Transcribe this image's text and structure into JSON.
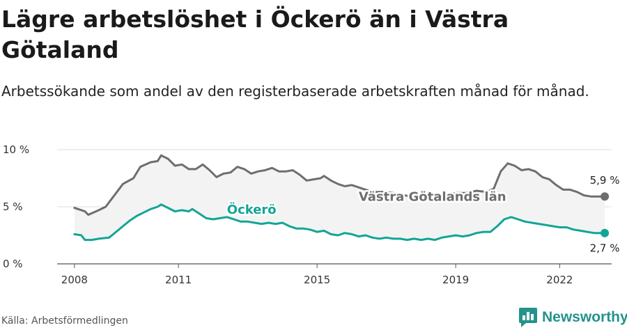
{
  "chart_data": {
    "type": "line",
    "title": "Lägre arbetslöshet i Öckerö än i Västra Götaland",
    "subtitle": "Arbetssökande som andel av den registerbaserade arbetskraften månad för månad.",
    "ylim": [
      0,
      10
    ],
    "y_ticks": [
      "0 %",
      "5 %",
      "10 %"
    ],
    "x_range": [
      2007.5,
      2023.5
    ],
    "x_ticks": [
      {
        "label": "2008",
        "value": 2008
      },
      {
        "label": "2011",
        "value": 2011
      },
      {
        "label": "2015",
        "value": 2015
      },
      {
        "label": "2019",
        "value": 2019
      },
      {
        "label": "2022",
        "value": 2022
      }
    ],
    "series": [
      {
        "name": "Västra Götalands län",
        "color": "#6e6e6e",
        "label": "Västra Götalands län",
        "end_label": "5,9 %",
        "points": [
          [
            2008.0,
            4.9
          ],
          [
            2008.3,
            4.6
          ],
          [
            2008.4,
            4.3
          ],
          [
            2008.7,
            4.7
          ],
          [
            2008.9,
            5.0
          ],
          [
            2009.2,
            6.2
          ],
          [
            2009.4,
            7.0
          ],
          [
            2009.7,
            7.5
          ],
          [
            2009.9,
            8.5
          ],
          [
            2010.2,
            8.9
          ],
          [
            2010.4,
            9.0
          ],
          [
            2010.5,
            9.5
          ],
          [
            2010.7,
            9.2
          ],
          [
            2010.9,
            8.6
          ],
          [
            2011.1,
            8.7
          ],
          [
            2011.3,
            8.3
          ],
          [
            2011.5,
            8.3
          ],
          [
            2011.7,
            8.7
          ],
          [
            2011.9,
            8.2
          ],
          [
            2012.1,
            7.6
          ],
          [
            2012.3,
            7.9
          ],
          [
            2012.5,
            8.0
          ],
          [
            2012.7,
            8.5
          ],
          [
            2012.9,
            8.3
          ],
          [
            2013.1,
            7.9
          ],
          [
            2013.3,
            8.1
          ],
          [
            2013.5,
            8.2
          ],
          [
            2013.7,
            8.4
          ],
          [
            2013.9,
            8.1
          ],
          [
            2014.1,
            8.1
          ],
          [
            2014.3,
            8.2
          ],
          [
            2014.5,
            7.8
          ],
          [
            2014.7,
            7.3
          ],
          [
            2014.9,
            7.4
          ],
          [
            2015.1,
            7.5
          ],
          [
            2015.2,
            7.7
          ],
          [
            2015.4,
            7.3
          ],
          [
            2015.6,
            7.0
          ],
          [
            2015.8,
            6.8
          ],
          [
            2016.0,
            6.9
          ],
          [
            2016.3,
            6.6
          ],
          [
            2016.6,
            6.3
          ],
          [
            2016.9,
            6.3
          ],
          [
            2017.2,
            6.2
          ],
          [
            2017.5,
            6.0
          ],
          [
            2017.8,
            5.9
          ],
          [
            2018.1,
            5.9
          ],
          [
            2018.4,
            6.0
          ],
          [
            2018.7,
            6.0
          ],
          [
            2019.0,
            6.2
          ],
          [
            2019.3,
            6.2
          ],
          [
            2019.6,
            6.4
          ],
          [
            2019.9,
            6.3
          ],
          [
            2020.1,
            6.6
          ],
          [
            2020.3,
            8.1
          ],
          [
            2020.5,
            8.8
          ],
          [
            2020.7,
            8.6
          ],
          [
            2020.9,
            8.2
          ],
          [
            2021.1,
            8.3
          ],
          [
            2021.3,
            8.1
          ],
          [
            2021.5,
            7.6
          ],
          [
            2021.7,
            7.4
          ],
          [
            2021.9,
            6.9
          ],
          [
            2022.1,
            6.5
          ],
          [
            2022.3,
            6.5
          ],
          [
            2022.5,
            6.3
          ],
          [
            2022.7,
            6.0
          ],
          [
            2022.9,
            5.9
          ],
          [
            2023.1,
            5.9
          ],
          [
            2023.3,
            5.9
          ]
        ]
      },
      {
        "name": "Öckerö",
        "color": "#12a595",
        "label": "Öckerö",
        "end_label": "2,7 %",
        "points": [
          [
            2008.0,
            2.6
          ],
          [
            2008.2,
            2.5
          ],
          [
            2008.3,
            2.1
          ],
          [
            2008.5,
            2.1
          ],
          [
            2008.7,
            2.2
          ],
          [
            2009.0,
            2.3
          ],
          [
            2009.2,
            2.8
          ],
          [
            2009.4,
            3.3
          ],
          [
            2009.6,
            3.8
          ],
          [
            2009.8,
            4.2
          ],
          [
            2010.0,
            4.5
          ],
          [
            2010.2,
            4.8
          ],
          [
            2010.4,
            5.0
          ],
          [
            2010.5,
            5.2
          ],
          [
            2010.7,
            4.9
          ],
          [
            2010.9,
            4.6
          ],
          [
            2011.1,
            4.7
          ],
          [
            2011.3,
            4.6
          ],
          [
            2011.4,
            4.8
          ],
          [
            2011.6,
            4.4
          ],
          [
            2011.8,
            4.0
          ],
          [
            2012.0,
            3.9
          ],
          [
            2012.2,
            4.0
          ],
          [
            2012.4,
            4.1
          ],
          [
            2012.6,
            3.9
          ],
          [
            2012.8,
            3.7
          ],
          [
            2013.0,
            3.7
          ],
          [
            2013.2,
            3.6
          ],
          [
            2013.4,
            3.5
          ],
          [
            2013.6,
            3.6
          ],
          [
            2013.8,
            3.5
          ],
          [
            2014.0,
            3.6
          ],
          [
            2014.2,
            3.3
          ],
          [
            2014.4,
            3.1
          ],
          [
            2014.6,
            3.1
          ],
          [
            2014.8,
            3.0
          ],
          [
            2015.0,
            2.8
          ],
          [
            2015.2,
            2.9
          ],
          [
            2015.4,
            2.6
          ],
          [
            2015.6,
            2.5
          ],
          [
            2015.8,
            2.7
          ],
          [
            2016.0,
            2.6
          ],
          [
            2016.2,
            2.4
          ],
          [
            2016.4,
            2.5
          ],
          [
            2016.6,
            2.3
          ],
          [
            2016.8,
            2.2
          ],
          [
            2017.0,
            2.3
          ],
          [
            2017.2,
            2.2
          ],
          [
            2017.4,
            2.2
          ],
          [
            2017.6,
            2.1
          ],
          [
            2017.8,
            2.2
          ],
          [
            2018.0,
            2.1
          ],
          [
            2018.2,
            2.2
          ],
          [
            2018.4,
            2.1
          ],
          [
            2018.6,
            2.3
          ],
          [
            2018.8,
            2.4
          ],
          [
            2019.0,
            2.5
          ],
          [
            2019.2,
            2.4
          ],
          [
            2019.4,
            2.5
          ],
          [
            2019.6,
            2.7
          ],
          [
            2019.8,
            2.8
          ],
          [
            2020.0,
            2.8
          ],
          [
            2020.2,
            3.3
          ],
          [
            2020.4,
            3.9
          ],
          [
            2020.6,
            4.1
          ],
          [
            2020.8,
            3.9
          ],
          [
            2021.0,
            3.7
          ],
          [
            2021.2,
            3.6
          ],
          [
            2021.4,
            3.5
          ],
          [
            2021.6,
            3.4
          ],
          [
            2021.8,
            3.3
          ],
          [
            2022.0,
            3.2
          ],
          [
            2022.2,
            3.2
          ],
          [
            2022.4,
            3.0
          ],
          [
            2022.6,
            2.9
          ],
          [
            2022.8,
            2.8
          ],
          [
            2023.0,
            2.7
          ],
          [
            2023.3,
            2.7
          ]
        ]
      }
    ]
  },
  "footer": {
    "source": "Källa: Arbetsförmedlingen",
    "brand": "Newsworthy"
  }
}
